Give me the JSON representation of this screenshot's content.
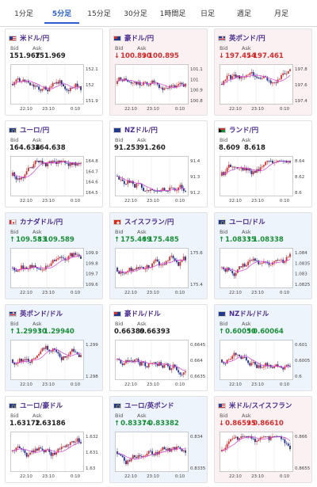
{
  "tabs": [
    {
      "label": "1分足",
      "active": false
    },
    {
      "label": "5分足",
      "active": true
    },
    {
      "label": "15分足",
      "active": false
    },
    {
      "label": "30分足",
      "active": false
    },
    {
      "label": "1時間足",
      "active": false
    },
    {
      "label": "日足",
      "active": false
    },
    {
      "label": "週足",
      "active": false
    },
    {
      "label": "月足",
      "active": false
    }
  ],
  "labels": {
    "bid": "Bid",
    "ask": "Ask"
  },
  "colors": {
    "up": "#1a8f3a",
    "down": "#d72c2c",
    "neutral": "#222",
    "name": "#4a2b8f",
    "bg_down": "#fbf1f3",
    "bg_up": "#eef4fb",
    "bg_neutral": "#ffffff",
    "accent": "#2b5fd1"
  },
  "pairs": [
    {
      "name": "米ドル/円",
      "flag": "us-flag",
      "bid": "151.967",
      "ask": "151.969",
      "dir": "neutral",
      "yticks": [
        "152.1",
        "152",
        "151.9"
      ],
      "xticks": [
        "22:10",
        "23:10",
        "0:10"
      ]
    },
    {
      "name": "豪ドル/円",
      "flag": "au-flag",
      "bid": "100.890",
      "ask": "100.895",
      "dir": "down",
      "yticks": [
        "101.1",
        "101",
        "100.9",
        "100.8"
      ],
      "xticks": [
        "22:10",
        "23:10",
        "0:10"
      ]
    },
    {
      "name": "英ポンド/円",
      "flag": "gb-flag",
      "bid": "197.454",
      "ask": "197.461",
      "dir": "down",
      "yticks": [
        "197.8",
        "197.6",
        "197.4"
      ],
      "xticks": [
        "22:10",
        "23:10",
        "0:10"
      ]
    },
    {
      "name": "ユーロ/円",
      "flag": "eu-flag",
      "bid": "164.634",
      "ask": "164.638",
      "dir": "neutral",
      "yticks": [
        "164.8",
        "164.7",
        "164.6",
        "164.5"
      ],
      "xticks": [
        "22:10",
        "23:10",
        "0:10"
      ]
    },
    {
      "name": "NZドル/円",
      "flag": "nz-flag",
      "bid": "91.253",
      "ask": "91.260",
      "dir": "neutral",
      "yticks": [
        "91.4",
        "91.3",
        "91.2"
      ],
      "xticks": [
        "22:10",
        "23:10",
        "0:10"
      ]
    },
    {
      "name": "ランド/円",
      "flag": "za-flag",
      "bid": "8.609",
      "ask": "8.618",
      "dir": "neutral",
      "yticks": [
        "8.64",
        "8.62",
        "8.6"
      ],
      "xticks": [
        "22:10",
        "23:10",
        "0:10"
      ]
    },
    {
      "name": "カナダドル/円",
      "flag": "ca-flag",
      "bid": "109.583",
      "ask": "109.589",
      "dir": "up",
      "yticks": [
        "109.9",
        "109.8",
        "109.7",
        "109.6"
      ],
      "xticks": [
        "22:10",
        "23:10",
        "0:10"
      ]
    },
    {
      "name": "スイスフラン/円",
      "flag": "ch-flag",
      "bid": "175.469",
      "ask": "175.485",
      "dir": "up",
      "yticks": [
        "175.6",
        "175.4"
      ],
      "xticks": [
        "22:10",
        "23:10",
        "0:10"
      ]
    },
    {
      "name": "ユーロ/ドル",
      "flag": "eu-flag",
      "bid": "1.08335",
      "ask": "1.08338",
      "dir": "up",
      "yticks": [
        "1.084",
        "1.0835",
        "1.083",
        "1.0825"
      ],
      "xticks": [
        "22:10",
        "23:10",
        "0:10"
      ]
    },
    {
      "name": "英ポンド/ドル",
      "flag": "gb-flag",
      "bid": "1.29930",
      "ask": "1.29940",
      "dir": "up",
      "yticks": [
        "1.299",
        "1.298"
      ],
      "xticks": [
        "22:10",
        "23:10",
        "0:10"
      ]
    },
    {
      "name": "豪ドル/ドル",
      "flag": "au-flag",
      "bid": "0.66389",
      "ask": "0.66393",
      "dir": "neutral",
      "yticks": [
        "0.6645",
        "0.664",
        "0.6635"
      ],
      "xticks": [
        "22:10",
        "23:10",
        "0:10"
      ]
    },
    {
      "name": "NZドル/ドル",
      "flag": "nz-flag",
      "bid": "0.60050",
      "ask": "0.60064",
      "dir": "up",
      "yticks": [
        "0.601",
        "0.6005",
        "0.6"
      ],
      "xticks": [
        "22:10",
        "23:10",
        "0:10"
      ]
    },
    {
      "name": "ユーロ/豪ドル",
      "flag": "eu-flag",
      "bid": "1.63172",
      "ask": "1.63186",
      "dir": "neutral",
      "yticks": [
        "1.632",
        "1.631",
        "1.63"
      ],
      "xticks": [
        "22:10",
        "23:10",
        "0:10"
      ]
    },
    {
      "name": "ユーロ/英ポンド",
      "flag": "eu-flag",
      "bid": "0.83374",
      "ask": "0.83382",
      "dir": "up",
      "yticks": [
        "0.834",
        "0.8335"
      ],
      "xticks": [
        "22:10",
        "23:10",
        "0:10"
      ]
    },
    {
      "name": "米ドル/スイスフラン",
      "flag": "us-flag",
      "bid": "0.86595",
      "ask": "0.86610",
      "dir": "down",
      "yticks": [
        "0.866",
        "0.8655"
      ],
      "xticks": [
        "22:10",
        "23:10",
        "0:10"
      ]
    }
  ]
}
